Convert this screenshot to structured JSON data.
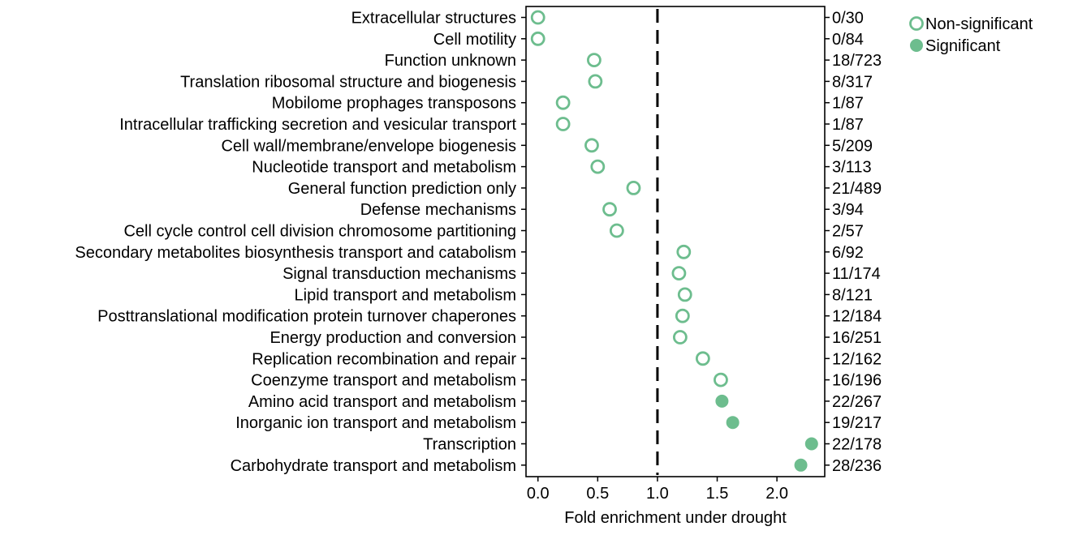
{
  "chart_data": {
    "type": "scatter",
    "xlabel": "Fold enrichment under drought",
    "xlim": [
      -0.1,
      2.4
    ],
    "xticks": [
      0.0,
      0.5,
      1.0,
      1.5,
      2.0
    ],
    "xtick_labels": [
      "0.0",
      "0.5",
      "1.0",
      "1.5",
      "2.0"
    ],
    "reference_line": {
      "x": 1.0,
      "style": "dashed"
    },
    "marker_color": "#6dbd8e",
    "legend": {
      "placement": "top-right-outside",
      "entries": [
        {
          "label": "Non-significant",
          "filled": false
        },
        {
          "label": "Significant",
          "filled": true
        }
      ]
    },
    "categories": [
      "Extracellular structures",
      "Cell motility",
      "Function unknown",
      "Translation ribosomal structure and biogenesis",
      "Mobilome prophages transposons",
      "Intracellular trafficking secretion and vesicular transport",
      "Cell wall/membrane/envelope biogenesis",
      "Nucleotide transport and metabolism",
      "General function prediction only",
      "Defense mechanisms",
      "Cell cycle control cell division chromosome partitioning",
      "Secondary metabolites biosynthesis transport and catabolism",
      "Signal transduction mechanisms",
      "Lipid transport and metabolism",
      "Posttranslational modification protein turnover chaperones",
      "Energy production and conversion",
      "Replication recombination and repair",
      "Coenzyme transport and metabolism",
      "Amino acid transport and metabolism",
      "Inorganic ion transport and metabolism",
      "Transcription",
      "Carbohydrate transport and metabolism"
    ],
    "values": [
      0.0,
      0.0,
      0.47,
      0.48,
      0.21,
      0.21,
      0.45,
      0.5,
      0.8,
      0.6,
      0.66,
      1.22,
      1.18,
      1.23,
      1.21,
      1.19,
      1.38,
      1.53,
      1.54,
      1.63,
      2.29,
      2.2
    ],
    "significant": [
      false,
      false,
      false,
      false,
      false,
      false,
      false,
      false,
      false,
      false,
      false,
      false,
      false,
      false,
      false,
      false,
      false,
      false,
      true,
      true,
      true,
      true
    ],
    "counts": [
      "0/30",
      "0/84",
      "18/723",
      "8/317",
      "1/87",
      "1/87",
      "5/209",
      "3/113",
      "21/489",
      "3/94",
      "2/57",
      "6/92",
      "11/174",
      "8/121",
      "12/184",
      "16/251",
      "12/162",
      "16/196",
      "22/267",
      "19/217",
      "22/178",
      "28/236"
    ]
  }
}
